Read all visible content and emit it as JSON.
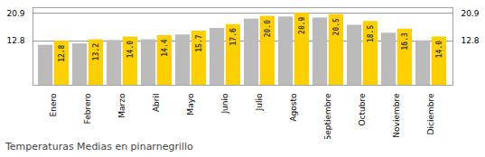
{
  "chart_data": {
    "type": "bar",
    "title": "Temperaturas Medias en pinarnegrillo",
    "categories": [
      "Enero",
      "Febrero",
      "Marzo",
      "Abril",
      "Mayo",
      "Junio",
      "Julio",
      "Agosto",
      "Septiembre",
      "Octubre",
      "Noviembre",
      "Diciembre"
    ],
    "series": [
      {
        "color": "#BBBBBB",
        "values": [
          11.6,
          12.0,
          13.0,
          13.2,
          14.6,
          16.5,
          19.2,
          19.8,
          19.5,
          17.4,
          15.1,
          12.9
        ]
      },
      {
        "color": "#FFD000",
        "values": [
          12.8,
          13.2,
          14.0,
          14.4,
          15.7,
          17.6,
          20.0,
          20.9,
          20.5,
          18.5,
          16.3,
          14.0
        ],
        "value_labels": [
          "12.8",
          "13.2",
          "14.0",
          "14.4",
          "15.7",
          "17.6",
          "20.0",
          "20.9",
          "20.5",
          "18.5",
          "16.3",
          "14.0"
        ]
      }
    ],
    "ylim": [
      0,
      22.5
    ],
    "yticks": [
      12.8,
      20.9
    ],
    "grid": true,
    "data_labels": true
  }
}
